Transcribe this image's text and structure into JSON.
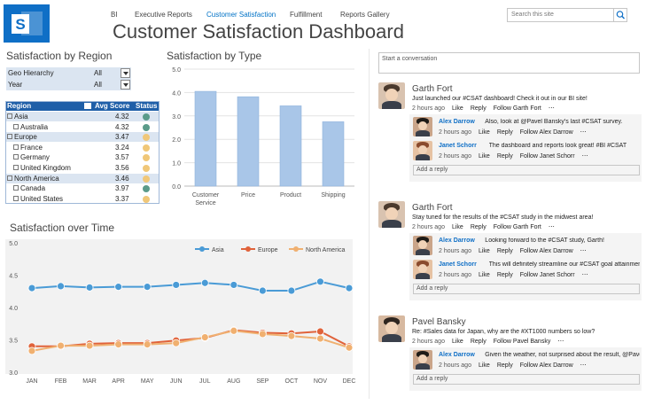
{
  "nav": {
    "items": [
      "BI",
      "Executive Reports",
      "Customer Satisfaction",
      "Fulfillment",
      "Reports Gallery"
    ],
    "active": "Customer Satisfaction"
  },
  "search": {
    "placeholder": "Search this site"
  },
  "page_title": "Customer Satisfaction Dashboard",
  "region_panel": {
    "title": "Satisfaction by Region",
    "filters": [
      {
        "label": "Geo Hierarchy",
        "value": "All"
      },
      {
        "label": "Year",
        "value": "All"
      }
    ],
    "columns": [
      "Region",
      "Avg Score",
      "Status"
    ],
    "rows": [
      {
        "label": "Asia",
        "level": 0,
        "score": "4.32",
        "status": "green"
      },
      {
        "label": "Australia",
        "level": 1,
        "score": "4.32",
        "status": "green"
      },
      {
        "label": "Europe",
        "level": 0,
        "score": "3.47",
        "status": "yellow"
      },
      {
        "label": "France",
        "level": 1,
        "score": "3.24",
        "status": "yellow"
      },
      {
        "label": "Germany",
        "level": 1,
        "score": "3.57",
        "status": "yellow"
      },
      {
        "label": "United Kingdom",
        "level": 1,
        "score": "3.56",
        "status": "yellow"
      },
      {
        "label": "North America",
        "level": 0,
        "score": "3.46",
        "status": "yellow"
      },
      {
        "label": "Canada",
        "level": 1,
        "score": "3.97",
        "status": "green"
      },
      {
        "label": "United States",
        "level": 1,
        "score": "3.37",
        "status": "yellow"
      }
    ],
    "status_colors": {
      "green": "#5b9b8a",
      "yellow": "#f0c778"
    }
  },
  "chart_data": [
    {
      "type": "bar",
      "title": "Satisfaction by Type",
      "categories": [
        "Customer Service",
        "Price",
        "Product",
        "Shipping"
      ],
      "values": [
        4.05,
        3.82,
        3.43,
        2.75
      ],
      "ylim": [
        0,
        5
      ],
      "yticks": [
        "0.0",
        "1.0",
        "2.0",
        "3.0",
        "4.0",
        "5.0"
      ],
      "bar_color": "#a9c6e8",
      "grid": true
    },
    {
      "type": "line",
      "title": "Satisfaction over Time",
      "categories": [
        "JAN",
        "FEB",
        "MAR",
        "APR",
        "MAY",
        "JUN",
        "JUL",
        "AUG",
        "SEP",
        "OCT",
        "NOV",
        "DEC"
      ],
      "ylim": [
        3.0,
        5.0
      ],
      "yticks": [
        "3.0",
        "3.5",
        "4.0",
        "4.5",
        "5.0"
      ],
      "legend": "top-right",
      "series": [
        {
          "name": "Asia",
          "color": "#4a9bd6",
          "values": [
            4.3,
            4.33,
            4.31,
            4.32,
            4.32,
            4.35,
            4.38,
            4.35,
            4.26,
            4.26,
            4.4,
            4.3
          ]
        },
        {
          "name": "Europe",
          "color": "#e0623a",
          "values": [
            3.4,
            3.4,
            3.44,
            3.45,
            3.45,
            3.49,
            3.53,
            3.65,
            3.61,
            3.6,
            3.63,
            3.4
          ]
        },
        {
          "name": "North America",
          "color": "#f0b070",
          "values": [
            3.33,
            3.41,
            3.41,
            3.43,
            3.43,
            3.45,
            3.54,
            3.64,
            3.59,
            3.56,
            3.52,
            3.38
          ]
        }
      ]
    }
  ],
  "social": {
    "start_placeholder": "Start a conversation",
    "actions": [
      "Like",
      "Reply"
    ],
    "add_reply": "Add a reply",
    "threads": [
      {
        "author": "Garth Fort",
        "text": "Just launched our #CSAT dashboard! Check it out in our BI site!",
        "meta": "2 hours ago",
        "follow": "Follow Garth Fort",
        "replies": [
          {
            "author": "Alex Darrow",
            "text": "Also, look at @Pavel Bansky's last #CSAT survey.",
            "meta": "2 hours ago",
            "follow": "Follow Alex Darrow"
          },
          {
            "author": "Janet Schorr",
            "text": "The dashboard and reports look great! #BI #CSAT",
            "meta": "2 hours ago",
            "follow": "Follow Janet Schorr"
          }
        ]
      },
      {
        "author": "Garth Fort",
        "text": "Stay tuned for the results of the #CSAT study in the midwest area!",
        "meta": "2 hours ago",
        "follow": "Follow Garth Fort",
        "replies": [
          {
            "author": "Alex Darrow",
            "text": "Looking forward to the #CSAT study, Garth!",
            "meta": "2 hours ago",
            "follow": "Follow Alex Darrow"
          },
          {
            "author": "Janet Schorr",
            "text": "This will definitely streamline our #CSAT goal attainment!",
            "meta": "2 hours ago",
            "follow": "Follow Janet Schorr"
          }
        ]
      },
      {
        "author": "Pavel Bansky",
        "text": "Re: #Sales data for Japan, why are the #XT1000 numbers so low?",
        "meta": "2 hours ago",
        "follow": "Follow Pavel Bansky",
        "replies": [
          {
            "author": "Alex Darrow",
            "text": "Given the weather, not surprised about the result, @Pavel",
            "meta": "2 hours ago",
            "follow": "Follow Alex Darrow"
          }
        ]
      }
    ]
  }
}
